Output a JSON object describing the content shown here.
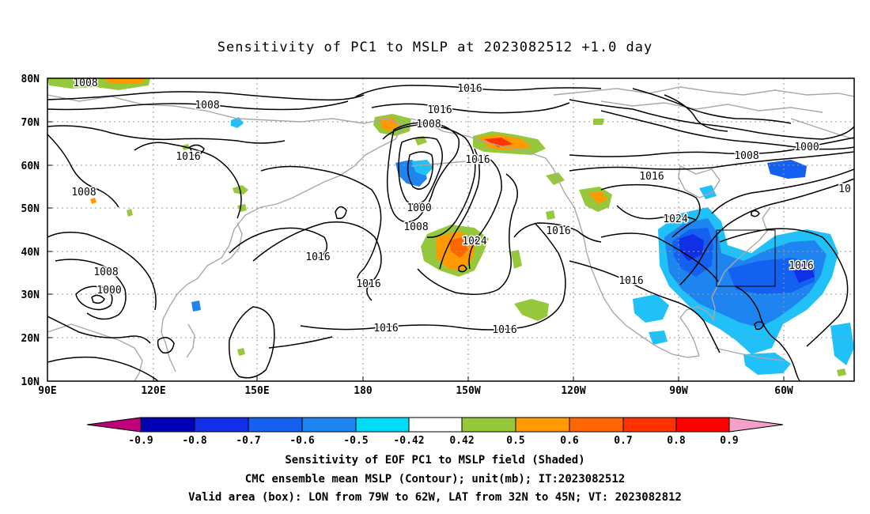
{
  "title": "Sensitivity of PC1 to MSLP at 2023082512 +1.0 day",
  "map": {
    "lon_range": [
      "90E",
      "40W"
    ],
    "lat_range": [
      "10N",
      "80N"
    ],
    "lon_ticks": [
      "90E",
      "120E",
      "150E",
      "180",
      "150W",
      "120W",
      "90W",
      "60W"
    ],
    "lat_ticks": [
      "80N",
      "70N",
      "60N",
      "50N",
      "40N",
      "30N",
      "20N",
      "10N"
    ],
    "contour_color": "#000000",
    "coast_color": "#a8a8a8",
    "contour_labels": [
      {
        "text": "1008"
      },
      {
        "text": "1008"
      },
      {
        "text": "1016"
      },
      {
        "text": "1008"
      },
      {
        "text": "1008"
      },
      {
        "text": "1000"
      },
      {
        "text": "1016"
      },
      {
        "text": "1016"
      },
      {
        "text": "1016"
      },
      {
        "text": "1008"
      },
      {
        "text": "1016"
      },
      {
        "text": "1000"
      },
      {
        "text": "1008"
      },
      {
        "text": "1024"
      },
      {
        "text": "1016"
      },
      {
        "text": "1016"
      },
      {
        "text": "1016"
      },
      {
        "text": "1016"
      },
      {
        "text": "1016"
      },
      {
        "text": "1016"
      },
      {
        "text": "1008"
      },
      {
        "text": "1000"
      },
      {
        "text": "1024"
      },
      {
        "text": "1016"
      },
      {
        "text": "10"
      }
    ],
    "valid_box": {
      "lon_from": "79W",
      "lon_to": "62W",
      "lat_from": "32N",
      "lat_to": "45N"
    }
  },
  "colorbar": {
    "labels": [
      "-0.9",
      "-0.8",
      "-0.7",
      "-0.6",
      "-0.5",
      "-0.42",
      "0.42",
      "0.5",
      "0.6",
      "0.7",
      "0.8",
      "0.9"
    ],
    "colors": [
      "#c0007a",
      "#0000b4",
      "#1030e8",
      "#1460f0",
      "#1e84f0",
      "#20c0f8",
      "#00dcf8",
      "#ffffff",
      "#96c83c",
      "#ff9900",
      "#ff6600",
      "#ff3300",
      "#ff0000",
      "#f4a0c8"
    ]
  },
  "captions": {
    "line1": "Sensitivity of EOF PC1 to MSLP field (Shaded)",
    "line2": "CMC ensemble mean MSLP (Contour); unit(mb); IT:2023082512",
    "line3": "Valid area (box): LON from 79W to 62W, LAT from 32N to 45N; VT: 2023082812"
  }
}
